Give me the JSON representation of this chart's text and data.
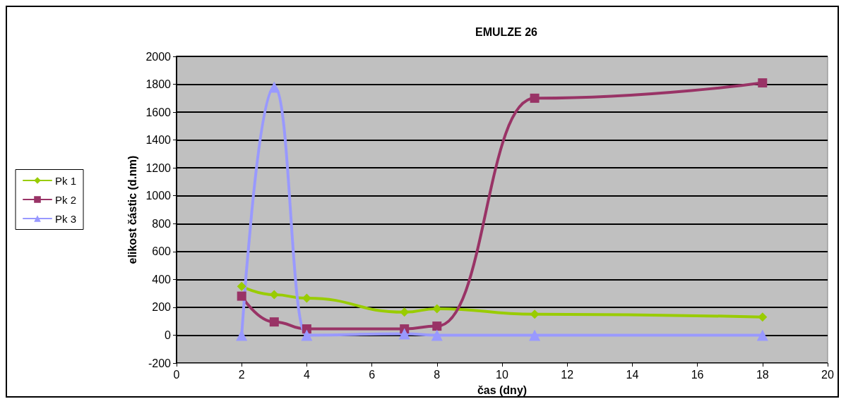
{
  "chart_data": {
    "type": "line",
    "title": "EMULZE 26",
    "xlabel": "čas (dny)",
    "ylabel": "elikost částic (d.nm)",
    "x": [
      2,
      3,
      4,
      7,
      8,
      11,
      18
    ],
    "series": [
      {
        "name": "Pk 1",
        "color": "#99cc00",
        "marker": "diamond",
        "values": [
          350,
          290,
          265,
          165,
          190,
          150,
          130
        ]
      },
      {
        "name": "Pk 2",
        "color": "#993366",
        "marker": "square",
        "values": [
          280,
          95,
          45,
          45,
          65,
          1700,
          1810
        ]
      },
      {
        "name": "Pk 3",
        "color": "#9999ff",
        "marker": "triangle",
        "values": [
          0,
          1780,
          0,
          10,
          0,
          0,
          0
        ]
      }
    ],
    "xlim": [
      0,
      20
    ],
    "xticks": [
      0,
      2,
      4,
      6,
      8,
      10,
      12,
      14,
      16,
      18,
      20
    ],
    "ylim": [
      -200,
      2000
    ],
    "yticks": [
      -200,
      0,
      200,
      400,
      600,
      800,
      1000,
      1200,
      1400,
      1600,
      1800,
      2000
    ],
    "grid": "y",
    "legend": "left",
    "line_style": "solid"
  }
}
